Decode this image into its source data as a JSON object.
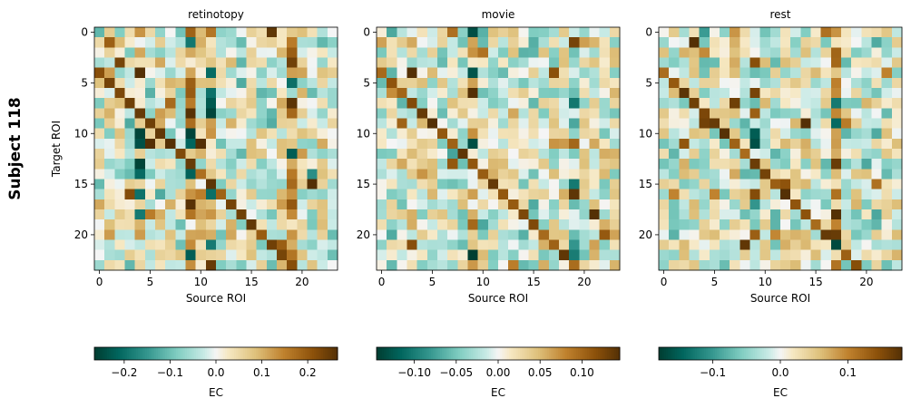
{
  "figure": {
    "row_label": "Subject 118"
  },
  "chart_data": [
    {
      "type": "heatmap",
      "title": "retinotopy",
      "xlabel": "Source ROI",
      "ylabel": "Target ROI",
      "x_ticks": [
        "0",
        "5",
        "10",
        "15",
        "20"
      ],
      "y_ticks": [
        "0",
        "5",
        "10",
        "15",
        "20"
      ],
      "n": 24,
      "vlim": [
        -0.265,
        0.265
      ],
      "seed": 118,
      "diag_offset": 4,
      "strong_source_columns": [
        4,
        9,
        11,
        19
      ],
      "colorbar": {
        "label": "EC",
        "ticks": [
          "−0.2",
          "−0.1",
          "0.0",
          "0.1",
          "0.2"
        ],
        "tick_values": [
          -0.2,
          -0.1,
          0.0,
          0.1,
          0.2
        ]
      }
    },
    {
      "type": "heatmap",
      "title": "movie",
      "xlabel": "Source ROI",
      "ylabel": "",
      "x_ticks": [
        "0",
        "5",
        "10",
        "15",
        "20"
      ],
      "y_ticks": [
        "0",
        "5",
        "10",
        "15",
        "20"
      ],
      "n": 24,
      "vlim": [
        -0.145,
        0.145
      ],
      "seed": 218,
      "diag_offset": 4,
      "strong_source_columns": [
        9,
        19
      ],
      "colorbar": {
        "label": "EC",
        "ticks": [
          "−0.10",
          "−0.05",
          "0.00",
          "0.05",
          "0.10"
        ],
        "tick_values": [
          -0.1,
          -0.05,
          0.0,
          0.05,
          0.1
        ]
      }
    },
    {
      "type": "heatmap",
      "title": "rest",
      "xlabel": "Source ROI",
      "ylabel": "",
      "x_ticks": [
        "0",
        "5",
        "10",
        "15",
        "20"
      ],
      "y_ticks": [
        "0",
        "5",
        "10",
        "15",
        "20"
      ],
      "n": 24,
      "vlim": [
        -0.18,
        0.18
      ],
      "seed": 318,
      "diag_offset": 4,
      "strong_source_columns": [
        9,
        17
      ],
      "colorbar": {
        "label": "EC",
        "ticks": [
          "−0.1",
          "0.0",
          "0.1"
        ],
        "tick_values": [
          -0.1,
          0.0,
          0.1
        ]
      }
    }
  ]
}
